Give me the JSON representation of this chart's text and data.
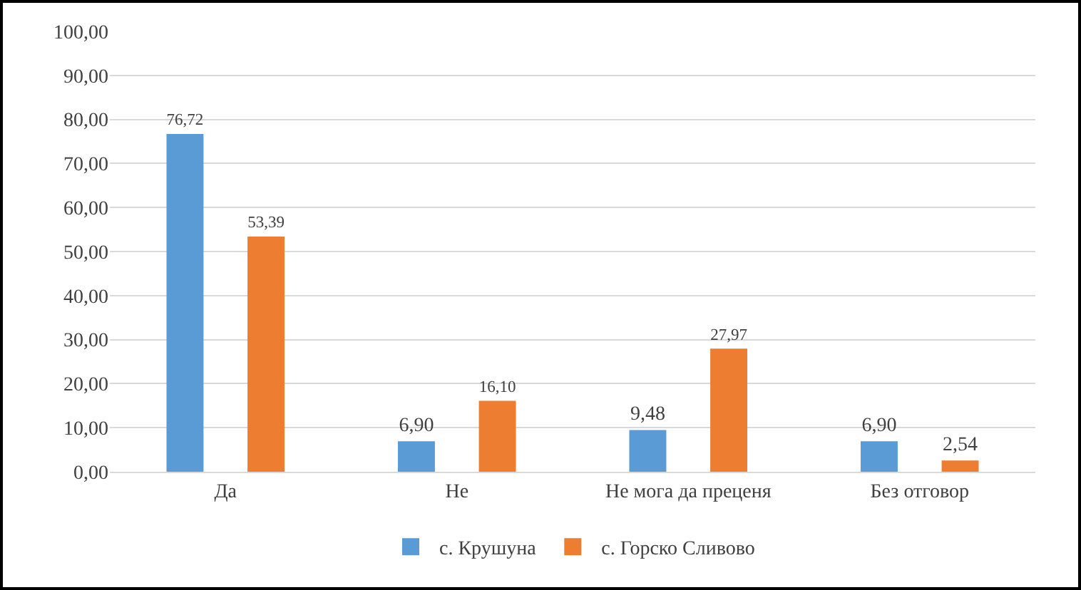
{
  "chart_data": {
    "type": "bar",
    "categories": [
      "Да",
      "Не",
      "Не мога да преценя",
      "Без отговор"
    ],
    "series": [
      {
        "name": "с. Крушуна",
        "color": "#5b9bd5",
        "values": [
          76.72,
          6.9,
          9.48,
          6.9
        ],
        "value_labels": [
          "76,72",
          "6,90",
          "9,48",
          "6,90"
        ]
      },
      {
        "name": "с. Горско Сливово",
        "color": "#ed7d31",
        "values": [
          53.39,
          16.1,
          27.97,
          2.54
        ],
        "value_labels": [
          "53,39",
          "16,10",
          "27,97",
          "2,54"
        ]
      }
    ],
    "ylim": [
      0,
      100
    ],
    "yticks": [
      {
        "value": 0,
        "label": "0,00"
      },
      {
        "value": 10,
        "label": "10,00"
      },
      {
        "value": 20,
        "label": "20,00"
      },
      {
        "value": 30,
        "label": "30,00"
      },
      {
        "value": 40,
        "label": "40,00"
      },
      {
        "value": 50,
        "label": "50,00"
      },
      {
        "value": 60,
        "label": "60,00"
      },
      {
        "value": 70,
        "label": "70,00"
      },
      {
        "value": 80,
        "label": "80,00"
      },
      {
        "value": 90,
        "label": "90,00"
      },
      {
        "value": 100,
        "label": "100,00"
      }
    ],
    "grid": "y",
    "legend": "bottom"
  }
}
